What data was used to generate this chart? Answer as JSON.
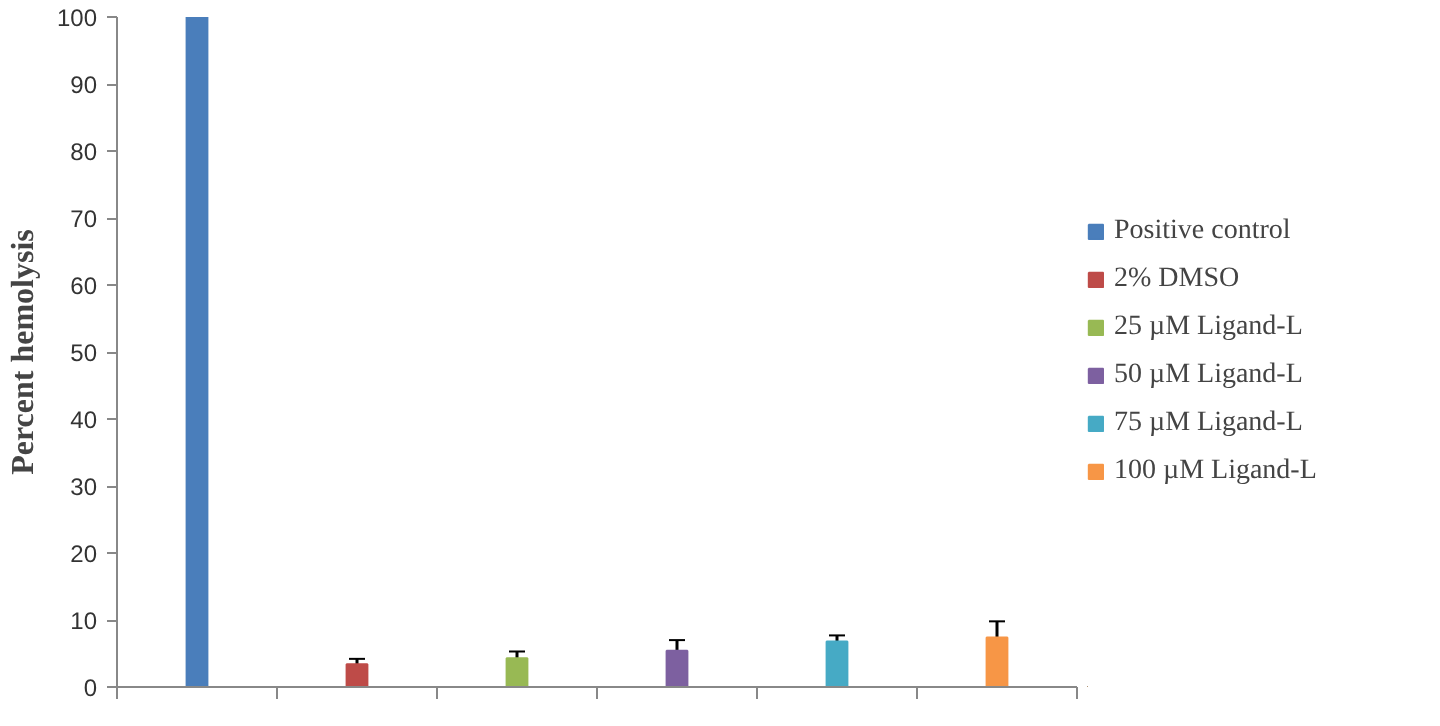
{
  "chart_data": {
    "type": "bar",
    "ylabel": "Percent hemolysis",
    "stacked": true,
    "categories": [
      null,
      null,
      null,
      null,
      null,
      null
    ],
    "series": [
      {
        "name": "Positive control",
        "color": "#4a7ebb",
        "values": [
          100,
          null,
          null,
          null,
          null,
          null
        ]
      },
      {
        "name": "2% DMSO",
        "color": "#be4b48",
        "values": [
          null,
          3.4,
          null,
          null,
          null,
          null
        ],
        "errors": [
          null,
          0.8,
          null,
          null,
          null,
          null
        ]
      },
      {
        "name": "25 µM Ligand-L",
        "color": "#98b954",
        "values": [
          null,
          null,
          4.3,
          null,
          null,
          null
        ],
        "errors": [
          null,
          null,
          1.0,
          null,
          null,
          null
        ]
      },
      {
        "name": "50 µM Ligand-L",
        "color": "#7d60a0",
        "values": [
          null,
          null,
          null,
          5.4,
          null,
          null
        ],
        "errors": [
          null,
          null,
          null,
          1.6,
          null,
          null
        ]
      },
      {
        "name": "75 µM Ligand-L",
        "color": "#46aac5",
        "values": [
          null,
          null,
          null,
          null,
          6.8,
          null
        ],
        "errors": [
          null,
          null,
          null,
          null,
          0.9,
          null
        ]
      },
      {
        "name": "100 µM Ligand-L",
        "color": "#f79646",
        "values": [
          null,
          null,
          null,
          null,
          null,
          7.4
        ],
        "errors": [
          null,
          null,
          null,
          null,
          null,
          2.4
        ]
      }
    ],
    "ylim": [
      0,
      100
    ],
    "yticks": [
      0,
      10,
      20,
      30,
      40,
      50,
      60,
      70,
      80,
      90,
      100
    ],
    "grid": false,
    "legend": "right"
  }
}
